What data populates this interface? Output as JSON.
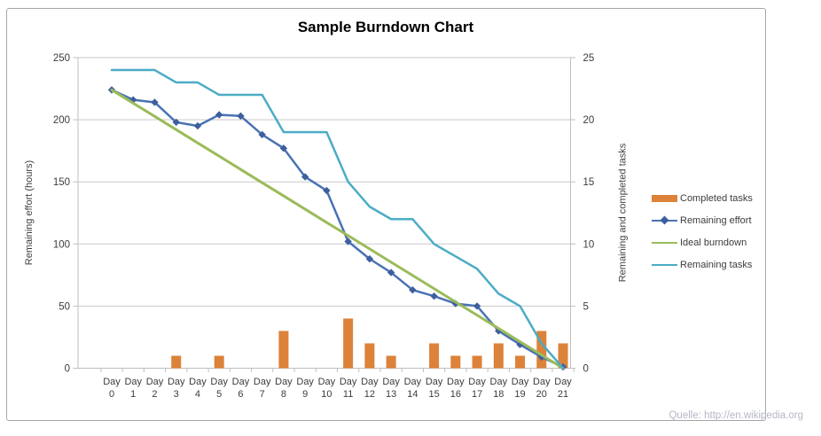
{
  "title": "Sample Burndown Chart",
  "source_note": "Quelle: http://en.wikipedia.org",
  "legend": {
    "items": [
      {
        "label": "Completed tasks",
        "type": "bar",
        "color": "#dc8239"
      },
      {
        "label": "Remaining effort",
        "type": "line-marker",
        "color": "#4a72b4",
        "marker_color": "#3e5f9e"
      },
      {
        "label": "Ideal burndown",
        "type": "line",
        "color": "#9bbb59"
      },
      {
        "label": "Remaining tasks",
        "type": "line",
        "color": "#4bacc6"
      }
    ]
  },
  "chart_data": {
    "type": "line",
    "title": "Sample Burndown Chart",
    "categories": [
      "Day 0",
      "Day 1",
      "Day 2",
      "Day 3",
      "Day 4",
      "Day 5",
      "Day 6",
      "Day 7",
      "Day 8",
      "Day 9",
      "Day 10",
      "Day 11",
      "Day 12",
      "Day 13",
      "Day 14",
      "Day 15",
      "Day 16",
      "Day 17",
      "Day 18",
      "Day 19",
      "Day 20",
      "Day 21"
    ],
    "left_axis": {
      "label": "Remaining effort (hours)",
      "ticks": [
        0,
        50,
        100,
        150,
        200,
        250
      ],
      "range": [
        0,
        250
      ]
    },
    "right_axis": {
      "label": "Remaining and  completed tasks",
      "ticks": [
        0,
        5,
        10,
        15,
        20,
        25
      ],
      "range": [
        0,
        25
      ]
    },
    "grid": true,
    "legend_position": "right",
    "series": [
      {
        "name": "Completed tasks",
        "type": "bar",
        "axis": "right",
        "color": "#dc8239",
        "values": [
          0,
          0,
          0,
          1,
          0,
          1,
          0,
          0,
          3,
          0,
          0,
          4,
          2,
          1,
          0,
          2,
          1,
          1,
          2,
          1,
          3,
          2
        ]
      },
      {
        "name": "Remaining effort",
        "type": "line-marker",
        "axis": "left",
        "color": "#4a72b4",
        "marker_color": "#3e5f9e",
        "values": [
          224,
          216,
          214,
          198,
          195,
          204,
          203,
          188,
          177,
          154,
          143,
          102,
          88,
          77,
          63,
          58,
          52,
          50,
          30,
          19,
          9,
          1
        ]
      },
      {
        "name": "Ideal burndown",
        "type": "line",
        "axis": "left",
        "color": "#9bbb59",
        "values": [
          224,
          213.3,
          202.7,
          192,
          181.3,
          170.7,
          160,
          149.3,
          138.7,
          128,
          117.3,
          106.7,
          96,
          85.3,
          74.7,
          64,
          53.3,
          42.7,
          32,
          21.3,
          10.7,
          0
        ]
      },
      {
        "name": "Remaining tasks",
        "type": "line",
        "axis": "right",
        "color": "#4bacc6",
        "values": [
          24,
          24,
          24,
          23,
          23,
          22,
          22,
          22,
          19,
          19,
          19,
          15,
          13,
          12,
          12,
          10,
          9,
          8,
          6,
          5,
          2,
          0
        ]
      }
    ]
  }
}
